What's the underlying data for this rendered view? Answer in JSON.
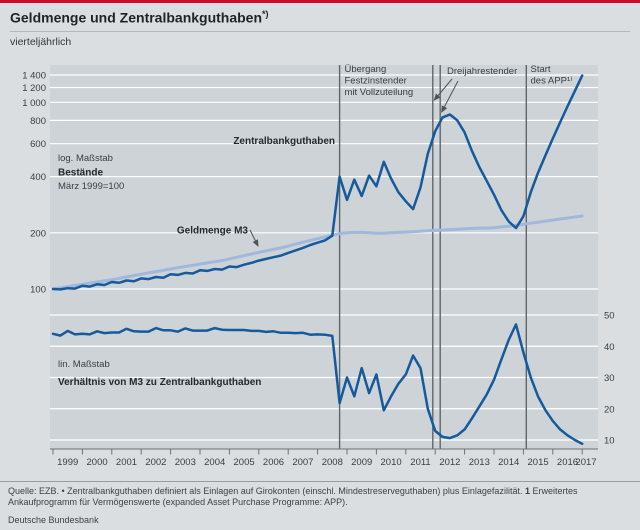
{
  "header": {
    "title": "Geldmenge und Zentralbankguthaben",
    "title_sup": "*)",
    "subtitle": "vierteljährlich"
  },
  "colors": {
    "accent_red": "#cc0d22",
    "page_bg": "#dbdee1",
    "plot_bg": "#ced3d7",
    "grid": "#ffffff",
    "dark_blue": "#155a9c",
    "light_blue": "#9fb8dc",
    "event_line": "#5f666b",
    "axis_text": "#393e42",
    "tick": "#6b7176"
  },
  "axes": {
    "left_log_ticks": [
      100,
      200,
      400,
      600,
      800,
      1000,
      1200,
      1400
    ],
    "left_log_labels": [
      "100",
      "200",
      "400",
      "600",
      "800",
      "1 000",
      "1 200",
      "1 400"
    ],
    "right_linear_ticks": [
      10,
      20,
      30,
      40,
      50
    ],
    "x_years": [
      1999,
      2000,
      2001,
      2002,
      2003,
      2004,
      2005,
      2006,
      2007,
      2008,
      2009,
      2010,
      2011,
      2012,
      2013,
      2014,
      2015,
      2016,
      2017
    ]
  },
  "labels": {
    "upper_scale": "log. Maßstab",
    "upper_title": "Bestände",
    "upper_base": "März 1999=100",
    "lower_scale": "lin. Maßstab",
    "lower_title": "Verhältnis von M3 zu Zentralbankguthaben",
    "series_z": "Zentralbankguthaben",
    "series_m3": "Geldmenge M3",
    "event1": [
      "Übergang",
      "Festzinstender",
      "mit Vollzuteilung"
    ],
    "event2": "Dreijahrestender",
    "event3": [
      "Start",
      "des APP¹⁾"
    ]
  },
  "chart_data": {
    "type": "line",
    "title": "Geldmenge und Zentralbankguthaben",
    "frequency": "vierteljährlich",
    "x_start": 1999.0,
    "x_step": 0.25,
    "x_range": [
      1999.0,
      2017.25
    ],
    "grid": true,
    "event_lines": [
      {
        "x": 2008.75,
        "label": "Übergang Festzinstender mit Vollzuteilung"
      },
      {
        "x": 2011.92,
        "label": "Dreijahrestender"
      },
      {
        "x": 2012.17,
        "label": "Dreijahrestender"
      },
      {
        "x": 2015.1,
        "label": "Start des APP"
      }
    ],
    "panels": [
      {
        "name": "Bestände, März 1999=100",
        "scale": "log",
        "axis": "left",
        "ylim": [
          95,
          1585
        ],
        "series": [
          {
            "name": "Geldmenge M3",
            "values": [
              100,
              101.5,
              103,
              104.5,
              106,
              107.5,
              109,
              110.5,
              112,
              114,
              116,
              118,
              120,
              122,
              124,
              126,
              128,
              130,
              132,
              134,
              136,
              138,
              140,
              142,
              145,
              148,
              151,
              154,
              157,
              160,
              163,
              166,
              170,
              174,
              178,
              182,
              186,
              190,
              194,
              198,
              200,
              201,
              201,
              200,
              199,
              199,
              200,
              201,
              202,
              203,
              204,
              205,
              206,
              207,
              208,
              209,
              210,
              211,
              212,
              212,
              213,
              215,
              217,
              219,
              222,
              225,
              228,
              231,
              234,
              237,
              240,
              243,
              246
            ]
          },
          {
            "name": "Zentralbankguthaben",
            "values": [
              100,
              99.5,
              101,
              100.5,
              104,
              103,
              106,
              105,
              109,
              108,
              111,
              110,
              114,
              113,
              116,
              115,
              120,
              119,
              122,
              121,
              126,
              125,
              128,
              127,
              132,
              131,
              135,
              138,
              142,
              145,
              148,
              151,
              156,
              161,
              166,
              172,
              177,
              182,
              193,
              400,
              300,
              385,
              315,
              405,
              355,
              480,
              390,
              330,
              295,
              268,
              350,
              530,
              700,
              830,
              860,
              800,
              690,
              550,
              450,
              380,
              320,
              265,
              230,
              212,
              245,
              330,
              420,
              520,
              640,
              780,
              950,
              1150,
              1390
            ]
          }
        ]
      },
      {
        "name": "Verhältnis von M3 zu Zentralbankguthaben",
        "scale": "linear",
        "axis": "right",
        "ylim": [
          7,
          55
        ],
        "series": [
          {
            "name": "Verhältnis von M3 zu Zentralbankguthaben",
            "values": [
              44,
              43.4,
              44.9,
              43.8,
              44,
              43.8,
              44.8,
              44.2,
              44.4,
              44.4,
              45.6,
              44.8,
              44.7,
              44.7,
              45.8,
              45.1,
              45.1,
              44.7,
              45.7,
              45,
              45,
              45,
              45.8,
              45.3,
              45.2,
              45.2,
              45.2,
              44.9,
              44.9,
              44.6,
              44.8,
              44.3,
              44.3,
              44.2,
              44.3,
              43.7,
              43.8,
              43.7,
              43.3,
              21.8,
              30,
              24,
              33,
              25,
              31,
              19.5,
              24,
              28,
              31,
              37,
              33,
              20,
              12.9,
              11,
              10.6,
              11.5,
              13.4,
              16.9,
              20.7,
              24.5,
              29.3,
              35.7,
              42,
              47,
              38,
              30,
              23.9,
              19.5,
              16.1,
              13.4,
              11.5,
              10,
              8.8
            ]
          }
        ]
      }
    ]
  },
  "footer": {
    "note_pre": "Quelle: EZB. • Zentralbankguthaben definiert als Einlagen auf Girokonten (einschl. Mindestreserveguthaben) plus Einlagefazilität. ",
    "note_marker": "1",
    "note_post": " Erweitertes Ankaufprogramm für Vermögenswerte (expanded Asset Purchase Programme: APP).",
    "brand": "Deutsche Bundesbank"
  }
}
